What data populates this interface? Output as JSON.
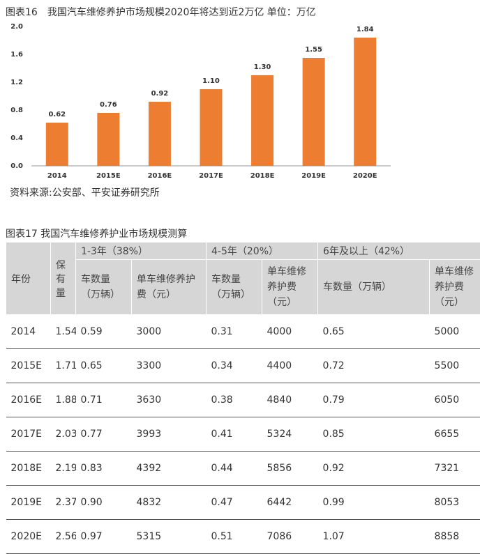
{
  "chart_data": {
    "type": "bar",
    "title": "图表16　我国汽车维修养护市场规模2020年将达到近2万亿  单位：万亿",
    "categories": [
      "2014",
      "2015E",
      "2016E",
      "2017E",
      "2018E",
      "2019E",
      "2020E"
    ],
    "values": [
      0.62,
      0.76,
      0.92,
      1.1,
      1.3,
      1.55,
      1.84
    ],
    "value_labels": [
      "0.62",
      "0.76",
      "0.92",
      "1.10",
      "1.30",
      "1.55",
      "1.84"
    ],
    "color": "#ed7d31",
    "ylim": [
      0,
      2
    ],
    "yticks": [
      {
        "value": 0,
        "label": "0.0"
      },
      {
        "value": 0.4,
        "label": "0.4"
      },
      {
        "value": 0.8,
        "label": "0.8"
      },
      {
        "value": 1.2,
        "label": "1.2"
      },
      {
        "value": 1.6,
        "label": "1.6"
      },
      {
        "value": 2,
        "label": "2.0"
      }
    ],
    "grid": false,
    "source": "资料来源:公安部、平安证券研究所"
  },
  "table": {
    "title": "图表17 我国汽车维修养护业市场规模测算",
    "groups": [
      "1-3年（38%）",
      "4-5年（20%）",
      "6年及以上（42%）"
    ],
    "header": [
      "年份",
      "保有量",
      "车数量（万辆）",
      "单车维修养护费（元）",
      "车数量（万辆）",
      "单车维修养护费（元）",
      "车数量（万辆）",
      "单车维修养护费（元）"
    ],
    "rows": [
      [
        "2014",
        "1.54",
        "0.59",
        "3000",
        "0.31",
        "4000",
        "0.65",
        "5000"
      ],
      [
        "2015E",
        "1.71",
        "0.65",
        "3300",
        "0.34",
        "4400",
        "0.72",
        "5500"
      ],
      [
        "2016E",
        "1.88",
        "0.71",
        "3630",
        "0.38",
        "4840",
        "0.79",
        "6050"
      ],
      [
        "2017E",
        "2.03",
        "0.77",
        "3993",
        "0.41",
        "5324",
        "0.85",
        "6655"
      ],
      [
        "2018E",
        "2.19",
        "0.83",
        "4392",
        "0.44",
        "5856",
        "0.92",
        "7321"
      ],
      [
        "2019E",
        "2.37",
        "0.90",
        "4832",
        "0.47",
        "6442",
        "0.99",
        "8053"
      ],
      [
        "2020E",
        "2.56",
        "0.97",
        "5315",
        "0.51",
        "7086",
        "1.07",
        "8858"
      ]
    ]
  }
}
